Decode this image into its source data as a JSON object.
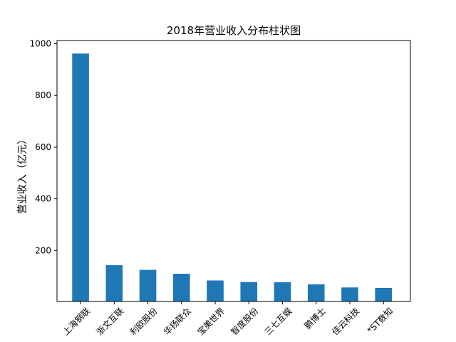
{
  "chart_data": {
    "type": "bar",
    "title": "2018年营业收入分布柱状图",
    "xlabel": "",
    "ylabel": "营业收入（亿元）",
    "categories": [
      "上海钢联",
      "浙文互联",
      "利欧股份",
      "华扬联众",
      "宝美世界",
      "智度股份",
      "三七互娱",
      "鹏博士",
      "佳云科技",
      "*ST数知"
    ],
    "values": [
      962,
      143,
      125,
      110,
      84,
      78,
      77,
      69,
      57,
      55
    ],
    "ylim": [
      0,
      1000
    ],
    "yticks": [
      200,
      400,
      600,
      800,
      1000
    ],
    "grid": false,
    "legend": "none",
    "bar_color": "#1f77b4"
  }
}
